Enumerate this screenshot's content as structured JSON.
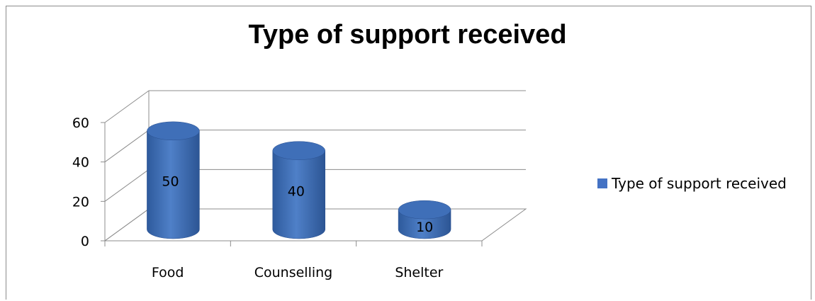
{
  "chart_data": {
    "type": "bar",
    "title": "Type of support received",
    "categories": [
      "Food",
      "Counselling",
      "Shelter"
    ],
    "series": [
      {
        "name": "Type of support received",
        "values": [
          50,
          40,
          10
        ],
        "color": "#4472C4"
      }
    ],
    "ylim": [
      0,
      60
    ],
    "yticks": [
      0,
      20,
      40,
      60
    ],
    "grid": true,
    "legend": "right",
    "style": "3d-cylinder"
  }
}
